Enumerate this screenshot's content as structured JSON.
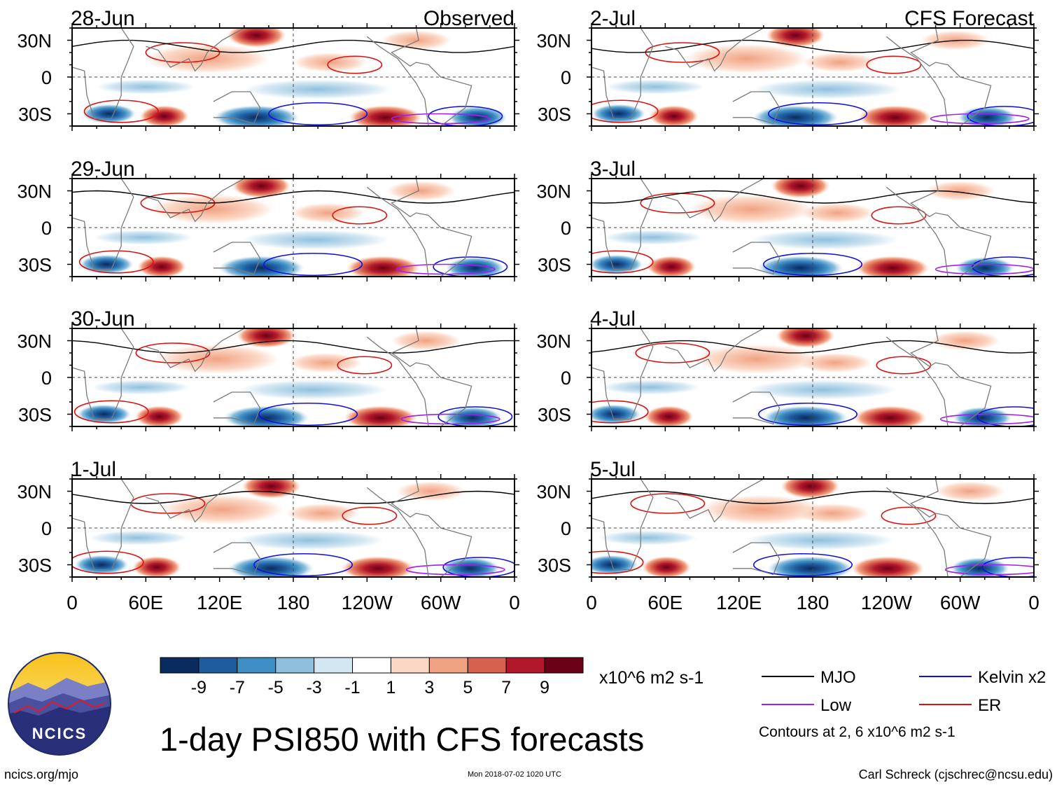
{
  "title": "1-day PSI850 with CFS forecasts",
  "credits": {
    "left": "ncics.org/mjo",
    "date": "Mon 2018-07-02 1020 UTC",
    "right": "Carl Schreck (cjschrec@ncsu.edu)"
  },
  "logo": {
    "text": "NCICS"
  },
  "colors": {
    "mjo": "#000000",
    "kelvin": "#1010dd",
    "low": "#a020f0",
    "er": "#dd1010",
    "land": "#7a7a7a",
    "axis": "#000000"
  },
  "colorbar": {
    "units": "x10^6 m2 s-1",
    "ticks": [
      "-9",
      "-7",
      "-5",
      "-3",
      "-1",
      "1",
      "3",
      "5",
      "7",
      "9"
    ],
    "colors": [
      "#0a2b5e",
      "#1f5c9e",
      "#3f8ec4",
      "#8ec0de",
      "#d3e7f2",
      "#ffffff",
      "#fbd8c6",
      "#f1a283",
      "#d8604f",
      "#b2182b",
      "#6b0016"
    ]
  },
  "legend": {
    "items": [
      {
        "label": "MJO",
        "color": "#000000"
      },
      {
        "label": "Kelvin x2",
        "color": "#1010dd"
      },
      {
        "label": "Low",
        "color": "#a020f0"
      },
      {
        "label": "ER",
        "color": "#dd1010"
      }
    ],
    "contour_note": "Contours at 2, 6 x10^6 m2 s-1"
  },
  "chart_data": {
    "type": "heatmap",
    "variable": "1-day PSI850 anomaly",
    "units": "x10^6 m2 s-1",
    "x_ticks": [
      "0",
      "60E",
      "120E",
      "180",
      "120W",
      "60W",
      "0"
    ],
    "y_ticks": [
      "30N",
      "0",
      "30S"
    ],
    "xlim": [
      0,
      360
    ],
    "ylim": [
      -40,
      40
    ],
    "contour_levels": [
      2,
      6
    ],
    "panels": [
      {
        "date": "28-Jun",
        "label": "Observed",
        "column": "observed",
        "row": 0
      },
      {
        "date": "29-Jun",
        "label": "",
        "column": "observed",
        "row": 1
      },
      {
        "date": "30-Jun",
        "label": "",
        "column": "observed",
        "row": 2
      },
      {
        "date": "1-Jul",
        "label": "",
        "column": "observed",
        "row": 3
      },
      {
        "date": "2-Jul",
        "label": "CFS Forecast",
        "column": "forecast",
        "row": 0
      },
      {
        "date": "3-Jul",
        "label": "",
        "column": "forecast",
        "row": 1
      },
      {
        "date": "4-Jul",
        "label": "",
        "column": "forecast",
        "row": 2
      },
      {
        "date": "5-Jul",
        "label": "",
        "column": "forecast",
        "row": 3
      }
    ]
  }
}
